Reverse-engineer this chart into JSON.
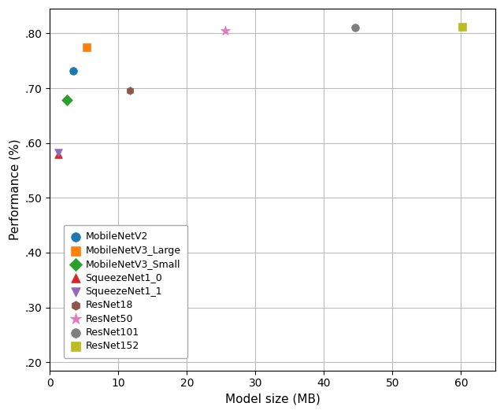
{
  "models": [
    {
      "name": "MobileNetV2",
      "size": 3.4,
      "perf": 0.731,
      "color": "#1f77b4",
      "marker": "o",
      "ms": 7
    },
    {
      "name": "MobileNetV3_Large",
      "size": 5.4,
      "perf": 0.775,
      "color": "#ff7f0e",
      "marker": "s",
      "ms": 7
    },
    {
      "name": "MobileNetV3_Small",
      "size": 2.5,
      "perf": 0.679,
      "color": "#2ca02c",
      "marker": "D",
      "ms": 7
    },
    {
      "name": "SqueezeNet1_0",
      "size": 1.25,
      "perf": 0.579,
      "color": "#d62728",
      "marker": "^",
      "ms": 7
    },
    {
      "name": "SqueezeNet1_1",
      "size": 1.25,
      "perf": 0.583,
      "color": "#9467bd",
      "marker": "v",
      "ms": 7
    },
    {
      "name": "ResNet18",
      "size": 11.7,
      "perf": 0.696,
      "color": "#8c564b",
      "marker": "h",
      "ms": 7
    },
    {
      "name": "ResNet50",
      "size": 25.6,
      "perf": 0.805,
      "color": "#e377c2",
      "marker": "*",
      "ms": 9
    },
    {
      "name": "ResNet101",
      "size": 44.6,
      "perf": 0.811,
      "color": "#7f7f7f",
      "marker": "o",
      "ms": 7
    },
    {
      "name": "ResNet152",
      "size": 60.2,
      "perf": 0.812,
      "color": "#bcbd22",
      "marker": "s",
      "ms": 7
    }
  ],
  "xlabel": "Model size (MB)",
  "ylabel": "Performance (%)",
  "xlim": [
    0,
    65
  ],
  "ylim": [
    0.185,
    0.845
  ],
  "yticks": [
    0.2,
    0.3,
    0.4,
    0.5,
    0.6,
    0.7,
    0.8
  ],
  "ytick_labels": [
    ".20",
    ".30",
    ".40",
    ".50",
    ".60",
    ".70",
    ".80"
  ],
  "xticks": [
    0,
    10,
    20,
    30,
    40,
    50,
    60
  ],
  "xtick_labels": [
    "0",
    "10",
    "20",
    "30",
    "40",
    "50",
    "60"
  ],
  "background_color": "#ffffff",
  "grid_color": "#bbbbbb",
  "figsize": [
    6.4,
    5.26
  ],
  "dpi": 100
}
